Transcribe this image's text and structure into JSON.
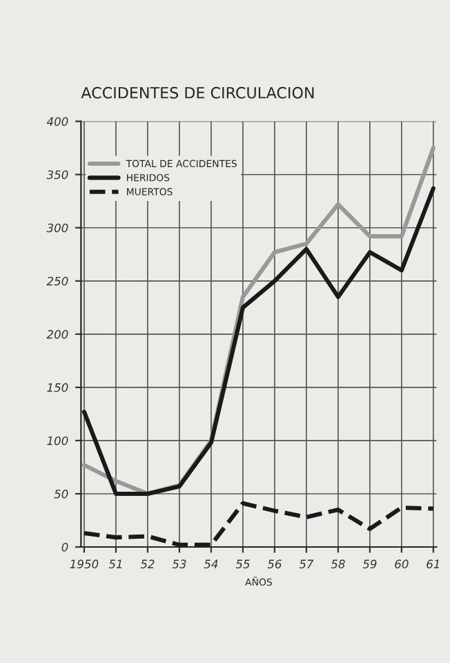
{
  "chart_data": {
    "type": "line",
    "title": "ACCIDENTES DE CIRCULACION",
    "xlabel": "AÑOS",
    "categories": [
      "1950",
      "51",
      "52",
      "53",
      "54",
      "55",
      "56",
      "57",
      "58",
      "59",
      "60",
      "61"
    ],
    "series": [
      {
        "name": "TOTAL DE ACCIDENTES",
        "color": "#999999",
        "line_style": "solid",
        "values": [
          77,
          62,
          50,
          58,
          100,
          235,
          277,
          285,
          322,
          292,
          292,
          375
        ]
      },
      {
        "name": "HERIDOS",
        "color": "#1a1a1a",
        "line_style": "solid",
        "values": [
          127,
          50,
          50,
          57,
          98,
          225,
          250,
          280,
          235,
          277,
          260,
          337
        ]
      },
      {
        "name": "MUERTOS",
        "color": "#1a1a1a",
        "line_style": "dashed",
        "values": [
          13,
          9,
          10,
          2,
          2,
          41,
          34,
          28,
          35,
          17,
          37,
          36
        ]
      }
    ],
    "ylim": [
      0,
      400
    ],
    "yticks": [
      0,
      50,
      100,
      150,
      200,
      250,
      300,
      350,
      400
    ],
    "grid": true,
    "legend": "top left",
    "marker": "none"
  }
}
